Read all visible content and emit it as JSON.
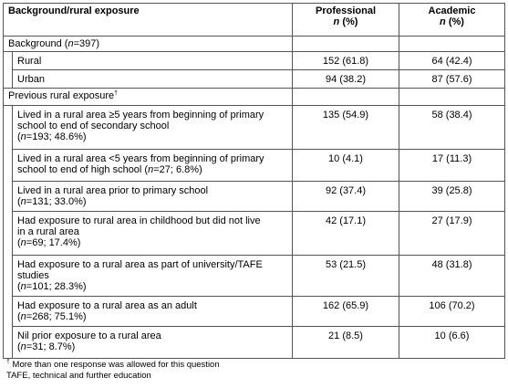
{
  "table": {
    "header": [
      {
        "lines": [
          [
            "Background/rural exposure"
          ]
        ]
      },
      {
        "lines": [
          [
            "Professional"
          ],
          [
            {
              "text": "n",
              "style": "italic"
            },
            " (%)"
          ]
        ]
      },
      {
        "lines": [
          [
            "Academic"
          ],
          [
            {
              "text": "n",
              "style": "italic"
            },
            " (%)"
          ]
        ]
      }
    ],
    "rows": [
      {
        "level": 0,
        "label": [
          [
            "Background (",
            {
              "text": "n",
              "style": "italic"
            },
            "=397)"
          ]
        ]
      },
      {
        "level": 1,
        "label": [
          [
            "Rural"
          ]
        ],
        "professional": "152 (61.8)",
        "academic": "64 (42.4)"
      },
      {
        "level": 1,
        "label": [
          [
            "Urban"
          ]
        ],
        "professional": "94 (38.2)",
        "academic": "87 (57.6)"
      },
      {
        "level": 0,
        "label": [
          [
            "Previous rural exposure",
            {
              "text": "†",
              "style": "sup"
            }
          ]
        ]
      },
      {
        "level": 1,
        "label": [
          [
            "Lived in a rural area ≥5 years from beginning of primary"
          ],
          [
            "school to end of secondary school"
          ],
          [
            "(",
            {
              "text": "n",
              "style": "italic"
            },
            "=193; 48.6%)"
          ]
        ],
        "professional": "135 (54.9)",
        "academic": "58 (38.4)"
      },
      {
        "level": 1,
        "label": [
          [
            "Lived in a rural area <5 years from beginning of primary"
          ],
          [
            "school to end of high school (",
            {
              "text": "n",
              "style": "italic"
            },
            "=27; 6.8%)"
          ]
        ],
        "professional": "10 (4.1)",
        "academic": "17 (11.3)"
      },
      {
        "level": 1,
        "label": [
          [
            "Lived in a rural area prior to primary school"
          ],
          [
            "(",
            {
              "text": "n",
              "style": "italic"
            },
            "=131; 33.0%)"
          ]
        ],
        "professional": "92 (37.4)",
        "academic": "39 (25.8)"
      },
      {
        "level": 1,
        "label": [
          [
            "Had exposure to rural area in childhood but did not live"
          ],
          [
            "in a rural area"
          ],
          [
            "(",
            {
              "text": "n",
              "style": "italic"
            },
            "=69; 17.4%)"
          ]
        ],
        "professional": "42 (17.1)",
        "academic": "27 (17.9)"
      },
      {
        "level": 1,
        "label": [
          [
            "Had exposure to a rural area as part of university/TAFE"
          ],
          [
            "studies"
          ],
          [
            "(",
            {
              "text": "n",
              "style": "italic"
            },
            "=101; 28.3%)"
          ]
        ],
        "professional": "53 (21.5)",
        "academic": "48 (31.8)"
      },
      {
        "level": 1,
        "label": [
          [
            "Had exposure to a rural area as an adult"
          ],
          [
            "(",
            {
              "text": "n",
              "style": "italic"
            },
            "=268; 75.1%)"
          ]
        ],
        "professional": "162 (65.9)",
        "academic": "106 (70.2)"
      },
      {
        "level": 1,
        "label": [
          [
            "Nil prior exposure to a rural area"
          ],
          [
            "(",
            {
              "text": "n",
              "style": "italic"
            },
            "=31; 8.7%)"
          ]
        ],
        "professional": "21 (8.5)",
        "academic": "10 (6.6)"
      }
    ],
    "footnotes": [
      [
        {
          "text": "†",
          "style": "sup"
        },
        " More than one response was allowed for this question"
      ],
      [
        "TAFE, technical and further education"
      ]
    ]
  }
}
